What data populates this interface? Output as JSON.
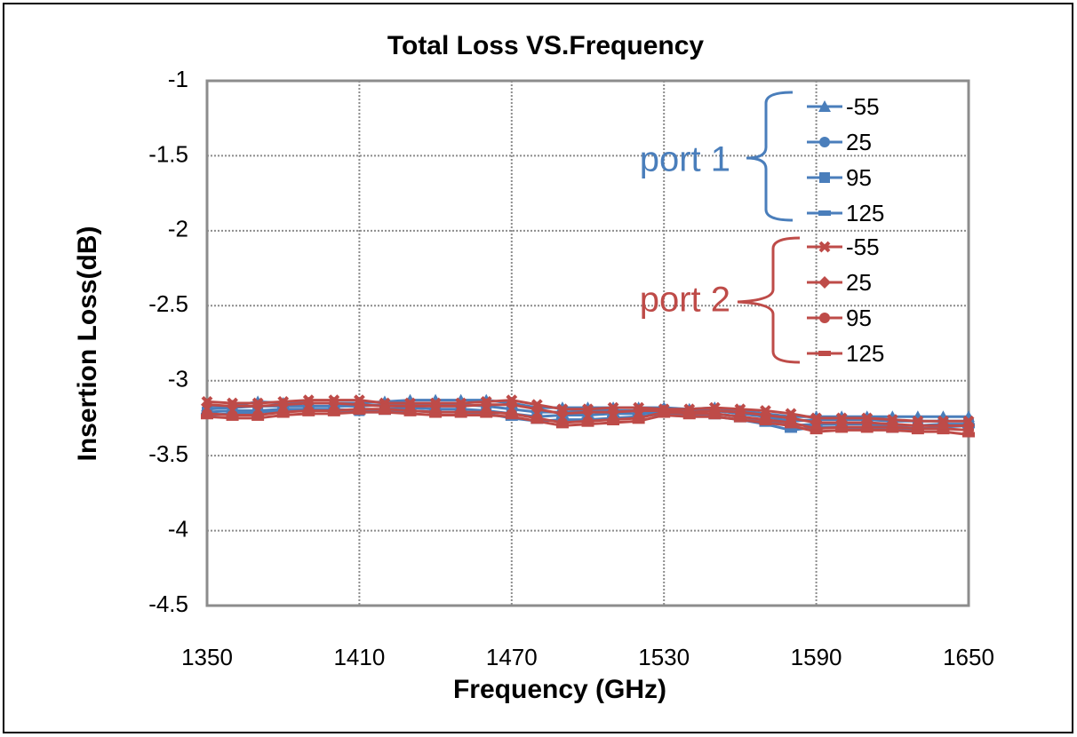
{
  "chart_data": {
    "type": "line",
    "title": "Total Loss VS.Frequency",
    "x_label": "Frequency (GHz)",
    "y_label": "Insertion Loss(dB)",
    "x": [
      1350,
      1360,
      1370,
      1380,
      1390,
      1400,
      1410,
      1420,
      1430,
      1440,
      1450,
      1460,
      1470,
      1480,
      1490,
      1500,
      1510,
      1520,
      1530,
      1540,
      1550,
      1560,
      1570,
      1580,
      1590,
      1600,
      1610,
      1620,
      1630,
      1640,
      1650
    ],
    "xlim": [
      1350,
      1650
    ],
    "xticks": [
      1350,
      1410,
      1470,
      1530,
      1590,
      1650
    ],
    "ylim": [
      -4.5,
      -1
    ],
    "yticks": [
      -1,
      -1.5,
      -2,
      -2.5,
      -3,
      -3.5,
      -4,
      -4.5
    ],
    "grid": true,
    "series": [
      {
        "name": "-55",
        "group": "port 1",
        "color": "#4a7ebb",
        "marker": "triangle",
        "values": [
          -3.17,
          -3.17,
          -3.14,
          -3.15,
          -3.15,
          -3.15,
          -3.15,
          -3.14,
          -3.13,
          -3.13,
          -3.13,
          -3.13,
          -3.15,
          -3.18,
          -3.18,
          -3.18,
          -3.18,
          -3.18,
          -3.18,
          -3.19,
          -3.18,
          -3.2,
          -3.22,
          -3.24,
          -3.24,
          -3.24,
          -3.24,
          -3.24,
          -3.24,
          -3.24,
          -3.24
        ]
      },
      {
        "name": "25",
        "group": "port 1",
        "color": "#4a7ebb",
        "marker": "circle",
        "values": [
          -3.19,
          -3.18,
          -3.17,
          -3.17,
          -3.17,
          -3.17,
          -3.17,
          -3.16,
          -3.16,
          -3.16,
          -3.16,
          -3.17,
          -3.19,
          -3.21,
          -3.21,
          -3.2,
          -3.2,
          -3.2,
          -3.19,
          -3.2,
          -3.2,
          -3.22,
          -3.24,
          -3.27,
          -3.26,
          -3.26,
          -3.26,
          -3.27,
          -3.27,
          -3.27,
          -3.27
        ]
      },
      {
        "name": "95",
        "group": "port 1",
        "color": "#4a7ebb",
        "marker": "square",
        "values": [
          -3.21,
          -3.2,
          -3.2,
          -3.19,
          -3.19,
          -3.19,
          -3.2,
          -3.19,
          -3.18,
          -3.19,
          -3.19,
          -3.2,
          -3.22,
          -3.24,
          -3.23,
          -3.23,
          -3.22,
          -3.22,
          -3.21,
          -3.22,
          -3.22,
          -3.24,
          -3.27,
          -3.3,
          -3.29,
          -3.29,
          -3.29,
          -3.3,
          -3.3,
          -3.29,
          -3.29
        ]
      },
      {
        "name": "125",
        "group": "port 1",
        "color": "#4a7ebb",
        "marker": "dash",
        "values": [
          -3.23,
          -3.22,
          -3.21,
          -3.2,
          -3.2,
          -3.2,
          -3.21,
          -3.21,
          -3.2,
          -3.21,
          -3.21,
          -3.22,
          -3.25,
          -3.27,
          -3.26,
          -3.26,
          -3.25,
          -3.24,
          -3.22,
          -3.23,
          -3.24,
          -3.26,
          -3.29,
          -3.33,
          -3.31,
          -3.31,
          -3.32,
          -3.33,
          -3.32,
          -3.31,
          -3.3
        ]
      },
      {
        "name": "-55",
        "group": "port 2",
        "color": "#be4b48",
        "marker": "x",
        "values": [
          -3.14,
          -3.15,
          -3.15,
          -3.14,
          -3.13,
          -3.13,
          -3.13,
          -3.15,
          -3.15,
          -3.15,
          -3.15,
          -3.14,
          -3.13,
          -3.16,
          -3.19,
          -3.19,
          -3.18,
          -3.18,
          -3.19,
          -3.19,
          -3.18,
          -3.19,
          -3.2,
          -3.22,
          -3.25,
          -3.25,
          -3.25,
          -3.26,
          -3.27,
          -3.27,
          -3.27
        ]
      },
      {
        "name": "25",
        "group": "port 2",
        "color": "#be4b48",
        "marker": "diamond",
        "values": [
          -3.16,
          -3.17,
          -3.17,
          -3.16,
          -3.15,
          -3.15,
          -3.16,
          -3.17,
          -3.17,
          -3.17,
          -3.17,
          -3.16,
          -3.16,
          -3.19,
          -3.22,
          -3.21,
          -3.21,
          -3.2,
          -3.2,
          -3.21,
          -3.2,
          -3.21,
          -3.23,
          -3.25,
          -3.28,
          -3.28,
          -3.28,
          -3.29,
          -3.3,
          -3.3,
          -3.3
        ]
      },
      {
        "name": "95",
        "group": "port 2",
        "color": "#be4b48",
        "marker": "circle",
        "values": [
          -3.22,
          -3.23,
          -3.23,
          -3.21,
          -3.2,
          -3.2,
          -3.19,
          -3.19,
          -3.2,
          -3.21,
          -3.21,
          -3.21,
          -3.22,
          -3.25,
          -3.28,
          -3.27,
          -3.26,
          -3.25,
          -3.21,
          -3.22,
          -3.22,
          -3.24,
          -3.26,
          -3.28,
          -3.32,
          -3.31,
          -3.31,
          -3.31,
          -3.32,
          -3.32,
          -3.33
        ]
      },
      {
        "name": "125",
        "group": "port 2",
        "color": "#be4b48",
        "marker": "dash",
        "values": [
          -3.24,
          -3.25,
          -3.25,
          -3.23,
          -3.22,
          -3.22,
          -3.21,
          -3.21,
          -3.22,
          -3.23,
          -3.23,
          -3.23,
          -3.24,
          -3.27,
          -3.3,
          -3.29,
          -3.28,
          -3.27,
          -3.23,
          -3.24,
          -3.24,
          -3.26,
          -3.28,
          -3.3,
          -3.34,
          -3.33,
          -3.33,
          -3.33,
          -3.34,
          -3.34,
          -3.36
        ]
      }
    ]
  }
}
